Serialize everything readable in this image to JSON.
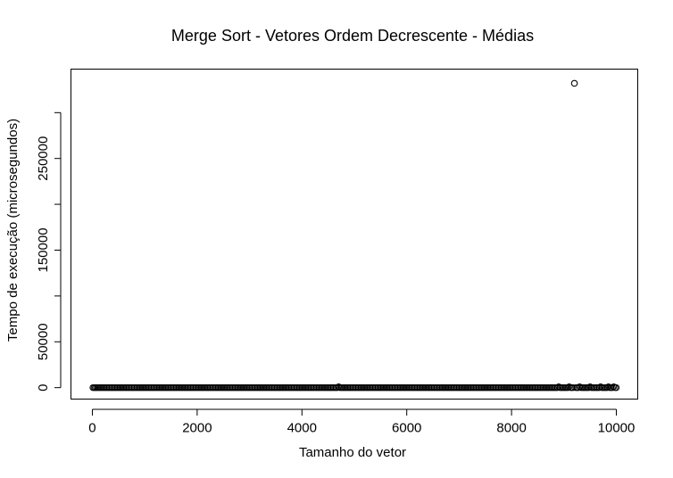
{
  "chart_data": {
    "type": "scatter",
    "title": "Merge Sort - Vetores Ordem Decrescente - Médias",
    "xlabel": "Tamanho do vetor",
    "ylabel": "Tempo de execução (microsegundos)",
    "xlim": [
      -400,
      10400
    ],
    "ylim": [
      -12000,
      347000
    ],
    "x_ticks": [
      0,
      2000,
      4000,
      6000,
      8000,
      10000
    ],
    "y_ticks": [
      0,
      50000,
      150000,
      250000
    ],
    "grid": false,
    "marker": "open-circle",
    "marker_color": "#000000",
    "series": [
      {
        "points": [
          [
            10,
            0
          ],
          [
            100,
            0
          ],
          [
            200,
            0
          ],
          [
            300,
            0
          ],
          [
            400,
            0
          ],
          [
            500,
            0
          ],
          [
            600,
            0
          ],
          [
            700,
            0
          ],
          [
            800,
            0
          ],
          [
            900,
            0
          ],
          [
            1000,
            0
          ],
          [
            1200,
            0
          ],
          [
            1400,
            0
          ],
          [
            1600,
            0
          ],
          [
            1800,
            0
          ],
          [
            2000,
            0
          ],
          [
            2200,
            0
          ],
          [
            2400,
            0
          ],
          [
            2600,
            0
          ],
          [
            2800,
            0
          ],
          [
            3000,
            0
          ],
          [
            3200,
            0
          ],
          [
            3400,
            0
          ],
          [
            3600,
            0
          ],
          [
            3800,
            0
          ],
          [
            4000,
            0
          ],
          [
            4200,
            0
          ],
          [
            4400,
            0
          ],
          [
            4600,
            0
          ],
          [
            4700,
            1000
          ],
          [
            4800,
            0
          ],
          [
            5000,
            0
          ],
          [
            5200,
            0
          ],
          [
            5400,
            0
          ],
          [
            5600,
            0
          ],
          [
            5800,
            0
          ],
          [
            6000,
            0
          ],
          [
            6200,
            0
          ],
          [
            6400,
            0
          ],
          [
            6600,
            0
          ],
          [
            6800,
            0
          ],
          [
            7000,
            0
          ],
          [
            7200,
            0
          ],
          [
            7400,
            0
          ],
          [
            7600,
            0
          ],
          [
            7800,
            0
          ],
          [
            8000,
            0
          ],
          [
            8200,
            0
          ],
          [
            8400,
            0
          ],
          [
            8600,
            0
          ],
          [
            8800,
            0
          ],
          [
            8900,
            1000
          ],
          [
            9000,
            0
          ],
          [
            9100,
            1000
          ],
          [
            9200,
            332000
          ],
          [
            9300,
            1000
          ],
          [
            9400,
            0
          ],
          [
            9500,
            1000
          ],
          [
            9600,
            0
          ],
          [
            9700,
            1000
          ],
          [
            9800,
            0
          ],
          [
            9850,
            1000
          ],
          [
            9900,
            0
          ],
          [
            9950,
            1000
          ],
          [
            10000,
            0
          ]
        ]
      }
    ]
  }
}
